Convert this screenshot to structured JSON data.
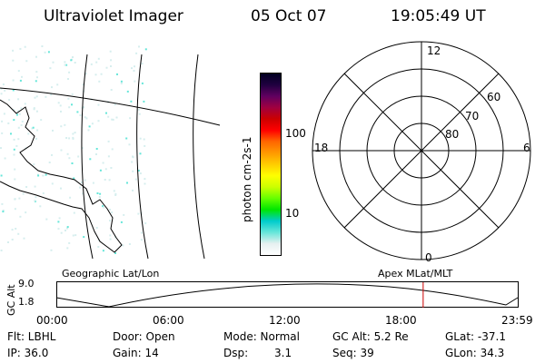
{
  "header": {
    "title": "Ultraviolet Imager",
    "date": "05 Oct 07",
    "time": "19:05:49 UT"
  },
  "colorbar": {
    "label": "photon cm-2s-1",
    "ticks": [
      "100",
      "10"
    ],
    "colors": [
      "#ffffff",
      "#e6f0f0",
      "#66e6d9",
      "#00cccc",
      "#00e600",
      "#66ff00",
      "#ccff00",
      "#ffff00",
      "#ffcc00",
      "#ff9900",
      "#ff6600",
      "#ff0000",
      "#cc0000",
      "#a00040",
      "#600060",
      "#200040",
      "#000020"
    ]
  },
  "polar_plot": {
    "mlt_labels": {
      "top": "12",
      "right": "6",
      "bottom": "0",
      "left": "18"
    },
    "lat_labels": [
      "60",
      "70",
      "80"
    ]
  },
  "timeline": {
    "left_label": "Geographic Lat/Lon",
    "right_label": "Apex MLat/MLT",
    "ylabel": "GC Alt",
    "ymax": "9.0",
    "ymin": "1.8",
    "xticks": [
      "00:00",
      "06:00",
      "12:00",
      "18:00",
      "23:59"
    ],
    "current_time_fraction": 0.795,
    "marker_color": "#cc0000"
  },
  "footer": {
    "row1": {
      "flt": "Flt: LBHL",
      "door": "Door: Open",
      "mode": "Mode: Normal",
      "gc_alt": "GC Alt: 5.2 Re",
      "glat": "GLat: -37.1"
    },
    "row2": {
      "ip": "IP: 36.0",
      "gain": "Gain: 14",
      "dsp_label": "Dsp:",
      "dsp_value": "3.1",
      "seq": "Seq: 39",
      "glon": "GLon: 34.3"
    }
  }
}
